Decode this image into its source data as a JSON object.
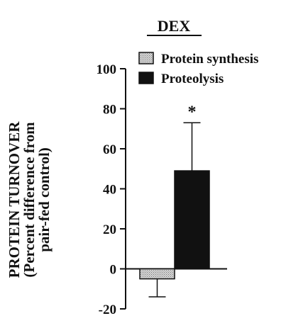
{
  "chart_data": {
    "type": "bar",
    "title": "DEX",
    "ylabel": [
      "PROTEIN TURNOVER",
      "(Percent difference from",
      "pair-fed control)"
    ],
    "ylim": [
      -20,
      100
    ],
    "yticks": [
      -20,
      0,
      20,
      40,
      60,
      80,
      100
    ],
    "grid": false,
    "legend_position": "top-right",
    "series": [
      {
        "name": "Protein synthesis",
        "value": -5,
        "error": 9,
        "color": "#bdbdbd",
        "pattern": "dotted"
      },
      {
        "name": "Proteolysis",
        "value": 49,
        "error": 24,
        "color": "#111111",
        "pattern": "solid"
      }
    ],
    "annotations": [
      {
        "text": "*",
        "series": "Proteolysis"
      }
    ]
  }
}
